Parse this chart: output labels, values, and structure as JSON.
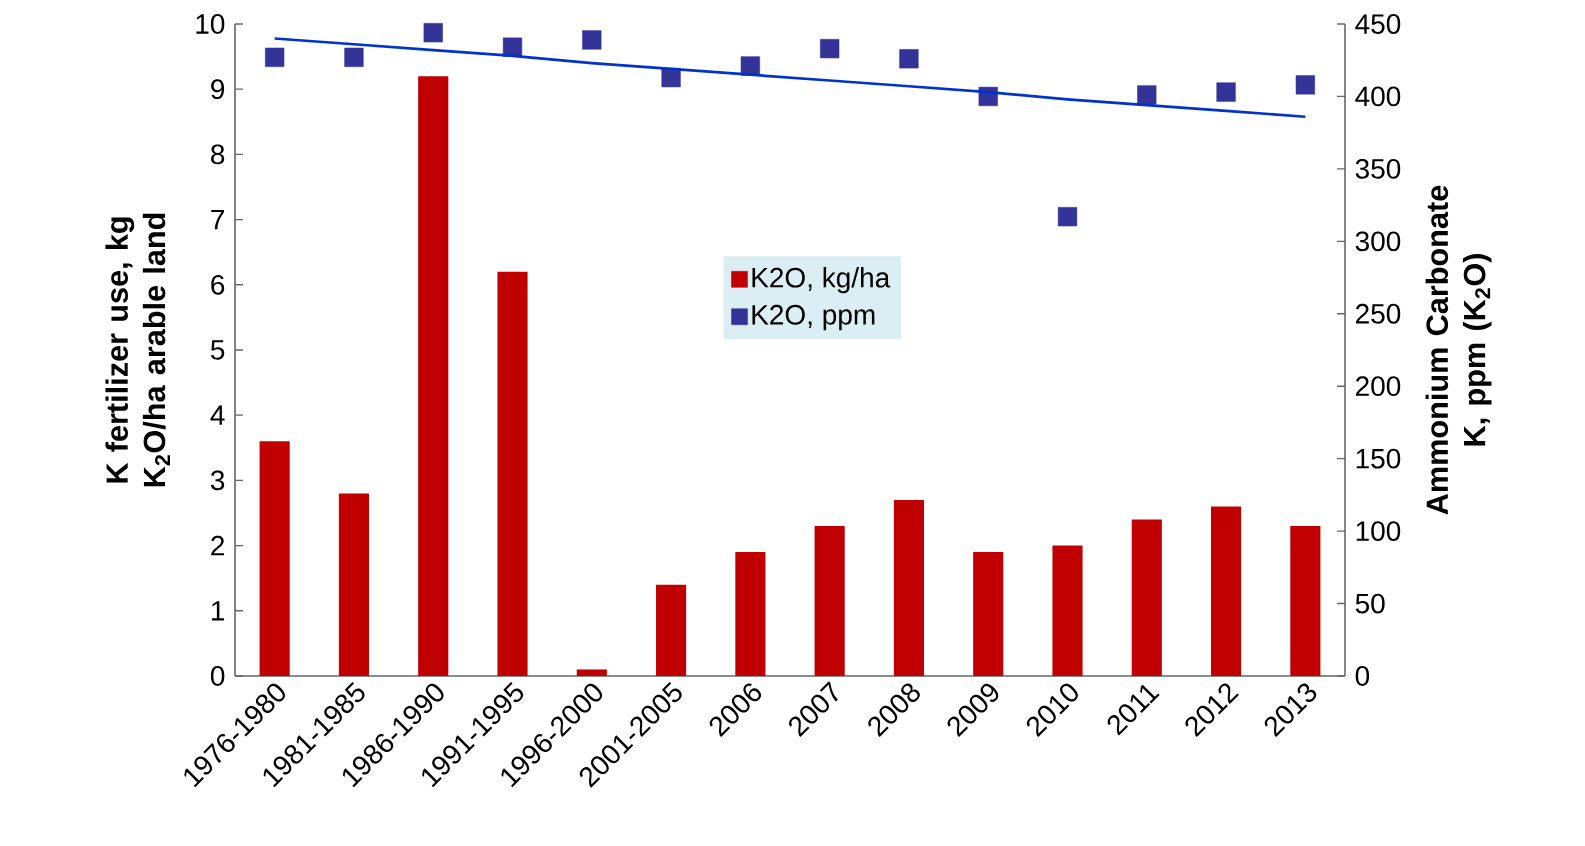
{
  "chart_data": {
    "type": "bar",
    "categories": [
      "1976-1980",
      "1981-1985",
      "1986-1990",
      "1991-1995",
      "1996-2000",
      "2001-2005",
      "2006",
      "2007",
      "2008",
      "2009",
      "2010",
      "2011",
      "2012",
      "2013"
    ],
    "series": [
      {
        "name": "K2O, kg/ha",
        "color": "#c00000",
        "values": [
          3.6,
          2.8,
          9.2,
          6.2,
          0.1,
          1.4,
          1.9,
          2.3,
          2.7,
          1.9,
          2.0,
          2.4,
          2.6,
          2.3
        ]
      },
      {
        "name": "K2O, ppm",
        "type": "scatter",
        "marker": "square",
        "axis": "y2",
        "color": "#333399",
        "values": [
          427,
          427,
          444,
          434,
          439,
          413,
          421,
          433,
          426,
          400,
          317,
          401,
          403,
          408
        ]
      },
      {
        "type": "line",
        "axis": "y2",
        "color": "#0033cc",
        "values": [
          440,
          436,
          432,
          428,
          423,
          419,
          415,
          411,
          407,
          403,
          398,
          394,
          390,
          386
        ]
      }
    ],
    "ylabel": "K fertilizer use, kg K$_{2}$O/ha arable land",
    "y2label": "Ammonium Carbonate K, ppm (K$_{2}$O)",
    "ylim": [
      0,
      10
    ],
    "yticks": [
      0,
      1,
      2,
      3,
      4,
      5,
      6,
      7,
      8,
      9,
      10
    ],
    "y2lim": [
      0,
      450
    ],
    "y2ticks": [
      0,
      50,
      100,
      150,
      200,
      250,
      300,
      350,
      400,
      450
    ],
    "legend": "center",
    "grid": false
  }
}
